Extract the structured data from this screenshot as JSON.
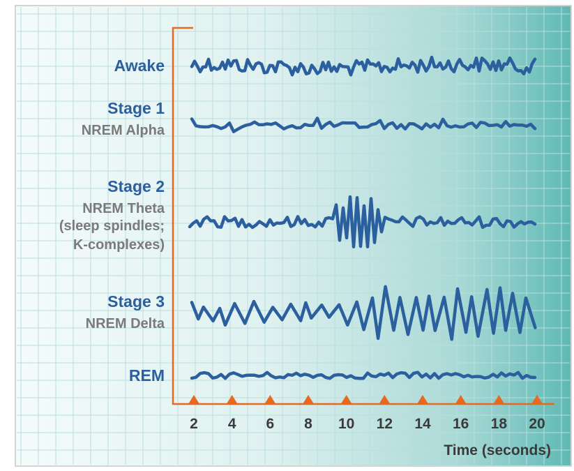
{
  "chart_data": {
    "type": "line",
    "title": "",
    "xlabel": "Time (seconds)",
    "ylabel": "",
    "x_ticks": [
      "2",
      "4",
      "6",
      "8",
      "10",
      "12",
      "14",
      "16",
      "18",
      "20"
    ],
    "xlim": [
      2,
      20
    ],
    "grid": true,
    "series": [
      {
        "name": "Awake",
        "lines": [
          "Awake"
        ],
        "pattern": "high-frequency, low-amplitude"
      },
      {
        "name": "Stage 1",
        "lines": [
          "Stage 1",
          "NREM Alpha"
        ],
        "pattern": "low-amplitude, mixed frequency"
      },
      {
        "name": "Stage 2",
        "lines": [
          "Stage 2",
          "NREM Theta",
          "(sleep spindles;",
          "K-complexes)"
        ],
        "pattern": "low-amplitude with spindle and K-complex burst near 10-12 s"
      },
      {
        "name": "Stage 3",
        "lines": [
          "Stage 3",
          "NREM Delta"
        ],
        "pattern": "high-amplitude, low-frequency; amplitude rising after 11 s"
      },
      {
        "name": "REM",
        "lines": [
          "REM"
        ],
        "pattern": "low-amplitude, mixed frequency"
      }
    ]
  },
  "colors": {
    "wave": "#2c5f9e",
    "axis": "#e8681e",
    "label_primary": "#2c5f9e",
    "label_secondary": "#7a7a7a",
    "tick_text": "#3a3a3a",
    "grid": "#b9dedd",
    "bg_light": "#f3fafa",
    "bg_dark": "#5ab7b4",
    "frame": "#d6d6d6"
  }
}
